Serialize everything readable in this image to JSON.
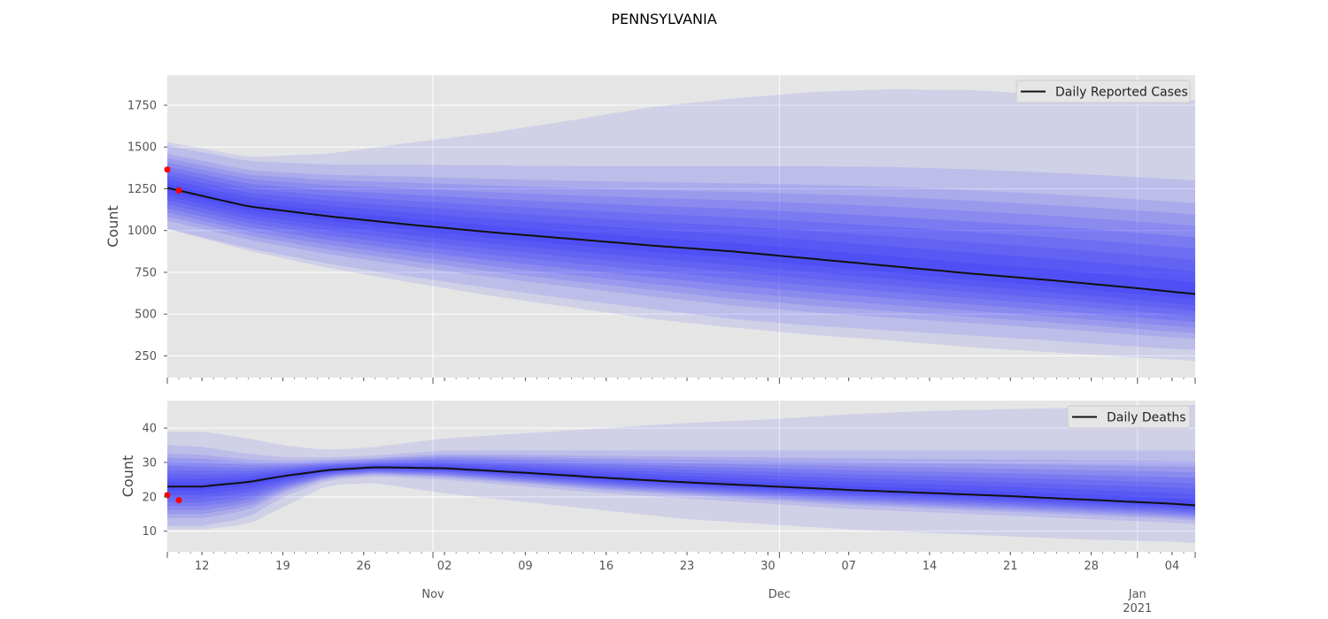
{
  "figure": {
    "title": "PENNSYLVANIA"
  },
  "colors": {
    "panel_bg": "#e5e5e5",
    "grid": "#ffffff",
    "band": "#1a1aff",
    "median_line": "#111111",
    "observed": "#ff0000"
  },
  "x_axis": {
    "start_date": "2020-10-09",
    "end_date": "2021-01-06",
    "day_ticks": [
      {
        "date": "2020-10-12",
        "label": "12"
      },
      {
        "date": "2020-10-19",
        "label": "19"
      },
      {
        "date": "2020-10-26",
        "label": "26"
      },
      {
        "date": "2020-11-02",
        "label": "02"
      },
      {
        "date": "2020-11-09",
        "label": "09"
      },
      {
        "date": "2020-11-16",
        "label": "16"
      },
      {
        "date": "2020-11-23",
        "label": "23"
      },
      {
        "date": "2020-11-30",
        "label": "30"
      },
      {
        "date": "2020-12-07",
        "label": "07"
      },
      {
        "date": "2020-12-14",
        "label": "14"
      },
      {
        "date": "2020-12-21",
        "label": "21"
      },
      {
        "date": "2020-12-28",
        "label": "28"
      },
      {
        "date": "2021-01-04",
        "label": "04"
      }
    ],
    "month_ticks": [
      {
        "date": "2020-11-01",
        "label": "Nov",
        "sublabel": ""
      },
      {
        "date": "2020-12-01",
        "label": "Dec",
        "sublabel": ""
      },
      {
        "date": "2021-01-01",
        "label": "Jan",
        "sublabel": "2021"
      }
    ]
  },
  "chart_data": [
    {
      "type": "area",
      "title": "",
      "xlabel": "",
      "ylabel": "Count",
      "ylim": [
        120,
        1930
      ],
      "yticks": [
        250,
        500,
        750,
        1000,
        1250,
        1500,
        1750
      ],
      "grid": true,
      "legend": {
        "position": "top-right",
        "entries": [
          "Daily Reported Cases"
        ]
      },
      "x": [
        "2020-10-09",
        "2020-10-16",
        "2020-10-23",
        "2020-10-30",
        "2020-11-06",
        "2020-11-13",
        "2020-11-20",
        "2020-11-27",
        "2020-12-04",
        "2020-12-11",
        "2020-12-18",
        "2020-12-25",
        "2021-01-01",
        "2021-01-06"
      ],
      "series": [
        {
          "name": "Daily Reported Cases",
          "role": "median",
          "values": [
            1255,
            1145,
            1085,
            1035,
            990,
            950,
            910,
            875,
            830,
            785,
            740,
            700,
            655,
            620
          ]
        }
      ],
      "bands": [
        {
          "lower": [
            1010,
            895,
            800,
            725,
            655,
            590,
            530,
            470,
            430,
            400,
            370,
            340,
            305,
            285
          ],
          "upper": [
            1510,
            1415,
            1395,
            1395,
            1390,
            1385,
            1385,
            1385,
            1385,
            1380,
            1365,
            1345,
            1320,
            1300
          ]
        },
        {
          "lower": [
            1010,
            880,
            775,
            690,
            610,
            540,
            470,
            420,
            375,
            340,
            300,
            270,
            240,
            220
          ],
          "upper": [
            1530,
            1440,
            1460,
            1525,
            1585,
            1660,
            1740,
            1790,
            1830,
            1845,
            1840,
            1810,
            1775,
            1780
          ]
        }
      ],
      "observed": {
        "x": [
          "2020-10-09",
          "2020-10-10"
        ],
        "y": [
          1365,
          1240
        ]
      }
    },
    {
      "type": "area",
      "title": "",
      "xlabel": "",
      "ylabel": "Count",
      "ylim": [
        4,
        48
      ],
      "yticks": [
        10,
        20,
        30,
        40
      ],
      "grid": true,
      "legend": {
        "position": "top-right",
        "entries": [
          "Daily Deaths"
        ]
      },
      "x": [
        "2020-10-09",
        "2020-10-12",
        "2020-10-16",
        "2020-10-19",
        "2020-10-23",
        "2020-10-27",
        "2020-11-02",
        "2020-11-09",
        "2020-11-16",
        "2020-11-23",
        "2020-11-30",
        "2020-12-07",
        "2020-12-14",
        "2020-12-21",
        "2020-12-28",
        "2021-01-04",
        "2021-01-06"
      ],
      "series": [
        {
          "name": "Daily Deaths",
          "role": "median",
          "values": [
            23,
            23,
            24.3,
            26,
            27.8,
            28.6,
            28.3,
            27,
            25.5,
            24.2,
            23.1,
            22,
            21.1,
            20.2,
            19.1,
            18,
            17.5
          ]
        }
      ],
      "bands": [
        {
          "lower": [
            11.5,
            11.5,
            14,
            20,
            25,
            26,
            25,
            23,
            21,
            19.5,
            18,
            16.5,
            15.5,
            14.5,
            13.5,
            12.5,
            12
          ],
          "upper": [
            35,
            34.5,
            32.5,
            31.5,
            31.5,
            32,
            33.5,
            33.5,
            33.5,
            33.5,
            33.5,
            33.5,
            33.5,
            33.5,
            33.5,
            33.5,
            33.5
          ]
        },
        {
          "lower": [
            10.5,
            10.5,
            12,
            17,
            23.5,
            24,
            21,
            18.5,
            16,
            13.5,
            12,
            10.5,
            9.5,
            8.5,
            7.5,
            7,
            6.5
          ],
          "upper": [
            39,
            39,
            37,
            35,
            33.5,
            34.5,
            37,
            38.5,
            40,
            41.5,
            42.5,
            44,
            45,
            45.5,
            46,
            46.5,
            46.8
          ]
        }
      ],
      "observed": {
        "x": [
          "2020-10-09",
          "2020-10-10"
        ],
        "y": [
          20.5,
          19
        ]
      }
    }
  ]
}
